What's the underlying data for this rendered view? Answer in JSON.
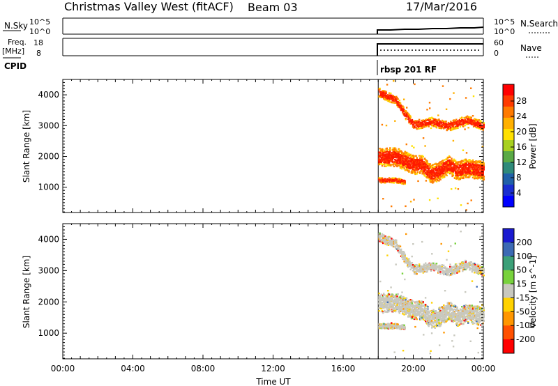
{
  "header": {
    "title": "Christmas Valley West (fitACF)",
    "beam": "Beam 03",
    "date": "17/Mar/2016"
  },
  "top_panels": {
    "nsky_label": "N.Sky",
    "nsky_ticks": [
      "10^5",
      "10^0"
    ],
    "nsearch_label": "N.Search",
    "nsearch_ticks": [
      "10^5",
      "10^0"
    ],
    "freq_label": "Freq.",
    "freq_unit": "[MHz]",
    "freq_ticks": [
      "18",
      "8"
    ],
    "nave_label": "Nave",
    "nave_ticks": [
      "60",
      "0"
    ],
    "cpid_label": "CPID",
    "cpid_value": "rbsp 201 RF"
  },
  "colors": {
    "velocity_gray": "#c8c8be",
    "power_red": "#ff1a00",
    "power_orange": "#ff8c00"
  },
  "chart_data": [
    {
      "type": "heatmap",
      "panel": "power",
      "ylabel": "Slant Range [km]",
      "y_ticks": [
        1000,
        2000,
        3000,
        4000
      ],
      "ylim": [
        180,
        4500
      ],
      "x_ticks": [
        "00:00",
        "04:00",
        "08:00",
        "12:00",
        "16:00",
        "20:00",
        "00:00"
      ],
      "xlim_hours": [
        0,
        24
      ],
      "data_start_hours": 18,
      "colorbar": {
        "label": "Power [dB]",
        "ticks": [
          "28",
          "24",
          "20",
          "16",
          "12",
          "8",
          "4"
        ],
        "colors": [
          "#ff0000",
          "#ff3a00",
          "#ff7a00",
          "#ffb000",
          "#ffe000",
          "#a8d020",
          "#5aaa46",
          "#2f8a7a",
          "#2060a8",
          "#1a2ed0",
          "#0000ff"
        ]
      },
      "bands": [
        {
          "t": [
            18.0,
            19.0,
            19.5,
            20.0,
            21.0,
            22.0,
            23.0,
            24.0
          ],
          "r": [
            4100,
            3850,
            3400,
            3050,
            3150,
            3000,
            3200,
            3000
          ],
          "width": 150
        },
        {
          "t": [
            18.0,
            19.0,
            20.0,
            20.5,
            21.0,
            21.5,
            22.0,
            22.5,
            23.0,
            24.0
          ],
          "r": [
            2000,
            2000,
            1750,
            1750,
            1450,
            1550,
            1750,
            1550,
            1650,
            1550
          ],
          "width": 300
        },
        {
          "t": [
            18.0,
            19.0,
            19.5
          ],
          "r": [
            1250,
            1250,
            1200
          ],
          "width": 80
        }
      ]
    },
    {
      "type": "heatmap",
      "panel": "velocity",
      "ylabel": "Slant Range [km]",
      "y_ticks": [
        1000,
        2000,
        3000,
        4000
      ],
      "ylim": [
        180,
        4500
      ],
      "x_ticks": [
        "00:00",
        "04:00",
        "08:00",
        "12:00",
        "16:00",
        "20:00",
        "00:00"
      ],
      "xlabel": "Time UT",
      "xlim_hours": [
        0,
        24
      ],
      "data_start_hours": 18,
      "colorbar": {
        "label": "Velocity [m s^-1]",
        "ticks": [
          "200",
          "100",
          "50",
          "15",
          "-15",
          "-50",
          "-100",
          "-200"
        ],
        "colors": [
          "#1a1ad0",
          "#3c6ab4",
          "#3ca078",
          "#78d23c",
          "#c8c8be",
          "#ffd200",
          "#ff9600",
          "#ff5000",
          "#ff0000"
        ]
      },
      "bands": [
        {
          "t": [
            18.0,
            19.0,
            19.5,
            20.0,
            21.0,
            22.0,
            23.0,
            24.0
          ],
          "r": [
            4100,
            3850,
            3400,
            3050,
            3150,
            3000,
            3200,
            3000
          ],
          "width": 150
        },
        {
          "t": [
            18.0,
            19.0,
            20.0,
            20.5,
            21.0,
            21.5,
            22.0,
            22.5,
            23.0,
            24.0
          ],
          "r": [
            2000,
            2000,
            1750,
            1750,
            1450,
            1550,
            1750,
            1550,
            1650,
            1550
          ],
          "width": 300
        },
        {
          "t": [
            18.0,
            19.0,
            19.5
          ],
          "r": [
            1250,
            1250,
            1200
          ],
          "width": 80
        }
      ]
    }
  ]
}
